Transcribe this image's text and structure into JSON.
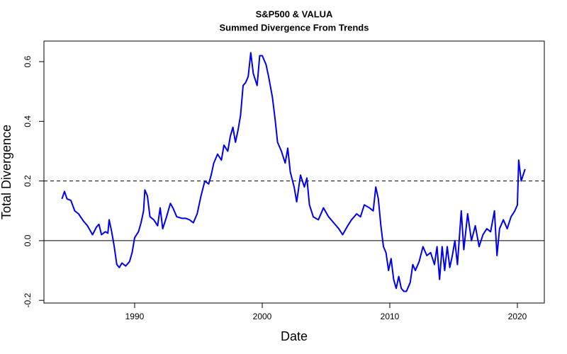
{
  "chart_data": {
    "type": "line",
    "title": "S&P500 & VALUA",
    "subtitle": "Summed Divergence From Trends",
    "x_label": "Date",
    "y_label": "Total Divergence",
    "x": [
      1984.3,
      1984.5,
      1984.7,
      1985.0,
      1985.3,
      1985.6,
      1986.0,
      1986.3,
      1986.7,
      1987.0,
      1987.2,
      1987.4,
      1987.7,
      1987.9,
      1988.0,
      1988.2,
      1988.4,
      1988.6,
      1988.8,
      1989.0,
      1989.3,
      1989.6,
      1989.8,
      1990.0,
      1990.3,
      1990.5,
      1990.7,
      1990.8,
      1991.0,
      1991.2,
      1991.5,
      1991.8,
      1992.0,
      1992.2,
      1992.5,
      1992.8,
      1993.0,
      1993.3,
      1993.7,
      1994.0,
      1994.3,
      1994.6,
      1994.9,
      1995.2,
      1995.5,
      1995.8,
      1996.0,
      1996.2,
      1996.5,
      1996.8,
      1997.0,
      1997.3,
      1997.5,
      1997.7,
      1997.9,
      1998.1,
      1998.3,
      1998.5,
      1998.7,
      1998.9,
      1999.1,
      1999.3,
      1999.6,
      1999.8,
      2000.0,
      2000.3,
      2000.5,
      2000.8,
      2001.0,
      2001.2,
      2001.5,
      2001.8,
      2002.0,
      2002.2,
      2002.5,
      2002.7,
      2003.0,
      2003.3,
      2003.5,
      2003.7,
      2004.0,
      2004.4,
      2004.8,
      2005.2,
      2005.6,
      2006.0,
      2006.3,
      2006.7,
      2007.0,
      2007.4,
      2007.7,
      2008.0,
      2008.4,
      2008.7,
      2008.9,
      2009.1,
      2009.3,
      2009.5,
      2009.7,
      2009.9,
      2010.1,
      2010.3,
      2010.5,
      2010.7,
      2010.9,
      2011.1,
      2011.3,
      2011.6,
      2011.8,
      2012.0,
      2012.3,
      2012.6,
      2012.9,
      2013.2,
      2013.5,
      2013.7,
      2013.9,
      2014.1,
      2014.3,
      2014.5,
      2014.7,
      2014.9,
      2015.1,
      2015.3,
      2015.6,
      2015.8,
      2016.1,
      2016.4,
      2016.7,
      2017.0,
      2017.3,
      2017.6,
      2017.9,
      2018.2,
      2018.4,
      2018.6,
      2018.9,
      2019.2,
      2019.5,
      2019.8,
      2020.0,
      2020.1,
      2020.3,
      2020.6
    ],
    "series": [
      {
        "color": "#0000ee",
        "values": [
          0.14,
          0.165,
          0.14,
          0.135,
          0.1,
          0.09,
          0.065,
          0.05,
          0.02,
          0.045,
          0.055,
          0.02,
          0.03,
          0.025,
          0.07,
          0.03,
          -0.02,
          -0.08,
          -0.09,
          -0.075,
          -0.085,
          -0.07,
          -0.04,
          0.01,
          0.03,
          0.06,
          0.1,
          0.17,
          0.15,
          0.08,
          0.07,
          0.05,
          0.11,
          0.04,
          0.08,
          0.125,
          0.11,
          0.08,
          0.075,
          0.075,
          0.07,
          0.06,
          0.09,
          0.15,
          0.2,
          0.19,
          0.22,
          0.26,
          0.29,
          0.27,
          0.32,
          0.3,
          0.35,
          0.38,
          0.33,
          0.37,
          0.42,
          0.52,
          0.53,
          0.55,
          0.63,
          0.56,
          0.52,
          0.62,
          0.62,
          0.59,
          0.55,
          0.48,
          0.41,
          0.33,
          0.3,
          0.26,
          0.31,
          0.23,
          0.18,
          0.13,
          0.22,
          0.18,
          0.21,
          0.12,
          0.08,
          0.07,
          0.11,
          0.08,
          0.06,
          0.04,
          0.02,
          0.05,
          0.07,
          0.09,
          0.08,
          0.12,
          0.11,
          0.1,
          0.18,
          0.14,
          0.05,
          -0.02,
          -0.04,
          -0.1,
          -0.06,
          -0.13,
          -0.16,
          -0.12,
          -0.16,
          -0.17,
          -0.17,
          -0.14,
          -0.08,
          -0.1,
          -0.07,
          -0.02,
          -0.05,
          -0.04,
          -0.08,
          -0.02,
          -0.13,
          -0.02,
          -0.1,
          -0.02,
          -0.09,
          -0.05,
          0.0,
          -0.08,
          0.1,
          -0.03,
          0.09,
          0.0,
          0.05,
          -0.02,
          0.02,
          0.04,
          0.03,
          0.1,
          -0.05,
          0.04,
          0.07,
          0.04,
          0.08,
          0.1,
          0.12,
          0.27,
          0.2,
          0.24
        ]
      }
    ],
    "xlim": [
      1982.89,
      2022.11
    ],
    "ylim": [
      -0.209,
      0.669
    ],
    "xticks": [
      1990,
      2000,
      2010,
      2020
    ],
    "yticks": [
      -0.2,
      {
        "value": 0,
        "label": "0.0"
      },
      0.2,
      0.4,
      0.6
    ],
    "hlines": [
      {
        "value": 0.2,
        "style": "dashed"
      },
      {
        "value": 0,
        "style": "solid"
      }
    ]
  }
}
